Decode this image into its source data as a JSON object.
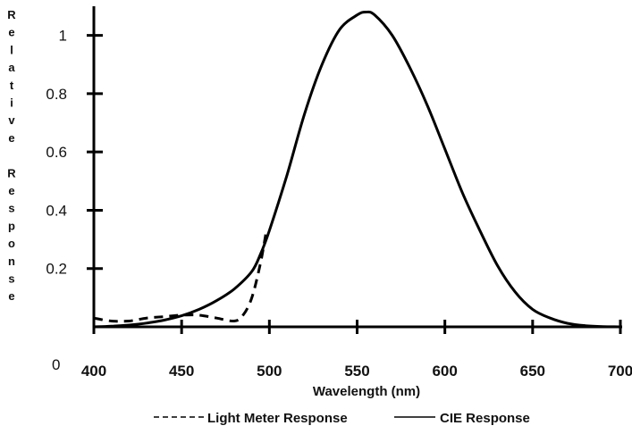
{
  "chart_data": {
    "type": "line",
    "xlabel": "Wavelength (nm)",
    "ylabel": "Relative Response",
    "ylabel_lines": [
      "Relative",
      "Response"
    ],
    "xlim": [
      400,
      700
    ],
    "ylim": [
      0,
      1.1
    ],
    "x_ticks": [
      400,
      450,
      500,
      550,
      600,
      650,
      700
    ],
    "y_ticks": [
      0.2,
      0.4,
      0.6,
      0.8,
      1
    ],
    "y_tick_labels": [
      "0.2",
      "0.4",
      "0.6",
      "0.8",
      "1"
    ],
    "origin_label": "0",
    "grid": false,
    "legend_position": "bottom",
    "series": [
      {
        "name": "Light Meter Response",
        "style": "dashed",
        "color": "#000000",
        "x": [
          400,
          410,
          420,
          430,
          440,
          450,
          460,
          470,
          480,
          485,
          490,
          495,
          498
        ],
        "y": [
          0.03,
          0.02,
          0.02,
          0.03,
          0.035,
          0.04,
          0.04,
          0.03,
          0.02,
          0.04,
          0.1,
          0.22,
          0.32
        ]
      },
      {
        "name": "CIE Response",
        "style": "solid",
        "color": "#000000",
        "x": [
          400,
          410,
          420,
          430,
          440,
          450,
          460,
          470,
          480,
          490,
          495,
          500,
          510,
          520,
          530,
          540,
          550,
          555,
          560,
          570,
          580,
          590,
          600,
          610,
          620,
          630,
          640,
          650,
          660,
          670,
          680,
          690,
          700
        ],
        "y": [
          0.0,
          0.002,
          0.006,
          0.013,
          0.023,
          0.038,
          0.06,
          0.09,
          0.13,
          0.19,
          0.25,
          0.33,
          0.52,
          0.73,
          0.9,
          1.02,
          1.07,
          1.08,
          1.07,
          1.0,
          0.89,
          0.76,
          0.61,
          0.46,
          0.33,
          0.21,
          0.12,
          0.06,
          0.03,
          0.012,
          0.004,
          0.001,
          0.0
        ]
      }
    ]
  }
}
